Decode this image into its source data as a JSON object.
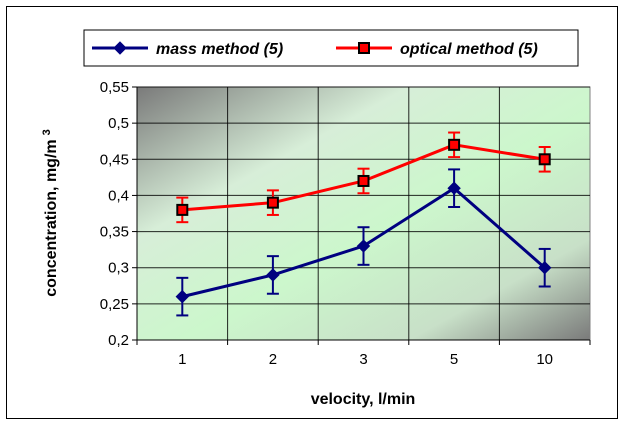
{
  "chart_data": {
    "type": "line",
    "categories": [
      "1",
      "2",
      "3",
      "5",
      "10"
    ],
    "series": [
      {
        "name": "mass method (5)",
        "values": [
          0.26,
          0.29,
          0.33,
          0.41,
          0.3
        ],
        "error": [
          0.026,
          0.026,
          0.026,
          0.026,
          0.026
        ],
        "color": "#000080",
        "marker": "diamond"
      },
      {
        "name": "optical method (5)",
        "values": [
          0.38,
          0.39,
          0.42,
          0.47,
          0.45
        ],
        "error": [
          0.017,
          0.017,
          0.017,
          0.017,
          0.017
        ],
        "color": "#ff0000",
        "marker": "square"
      }
    ],
    "xlabel": "velocity, l/min",
    "ylabel": "concentration, mg/m",
    "ylabel_superscript": "3",
    "ylim": [
      0.2,
      0.55
    ],
    "yticks": [
      "0,2",
      "0,25",
      "0,3",
      "0,35",
      "0,4",
      "0,45",
      "0,5",
      "0,55"
    ],
    "grid": true,
    "legend_position": "top"
  }
}
